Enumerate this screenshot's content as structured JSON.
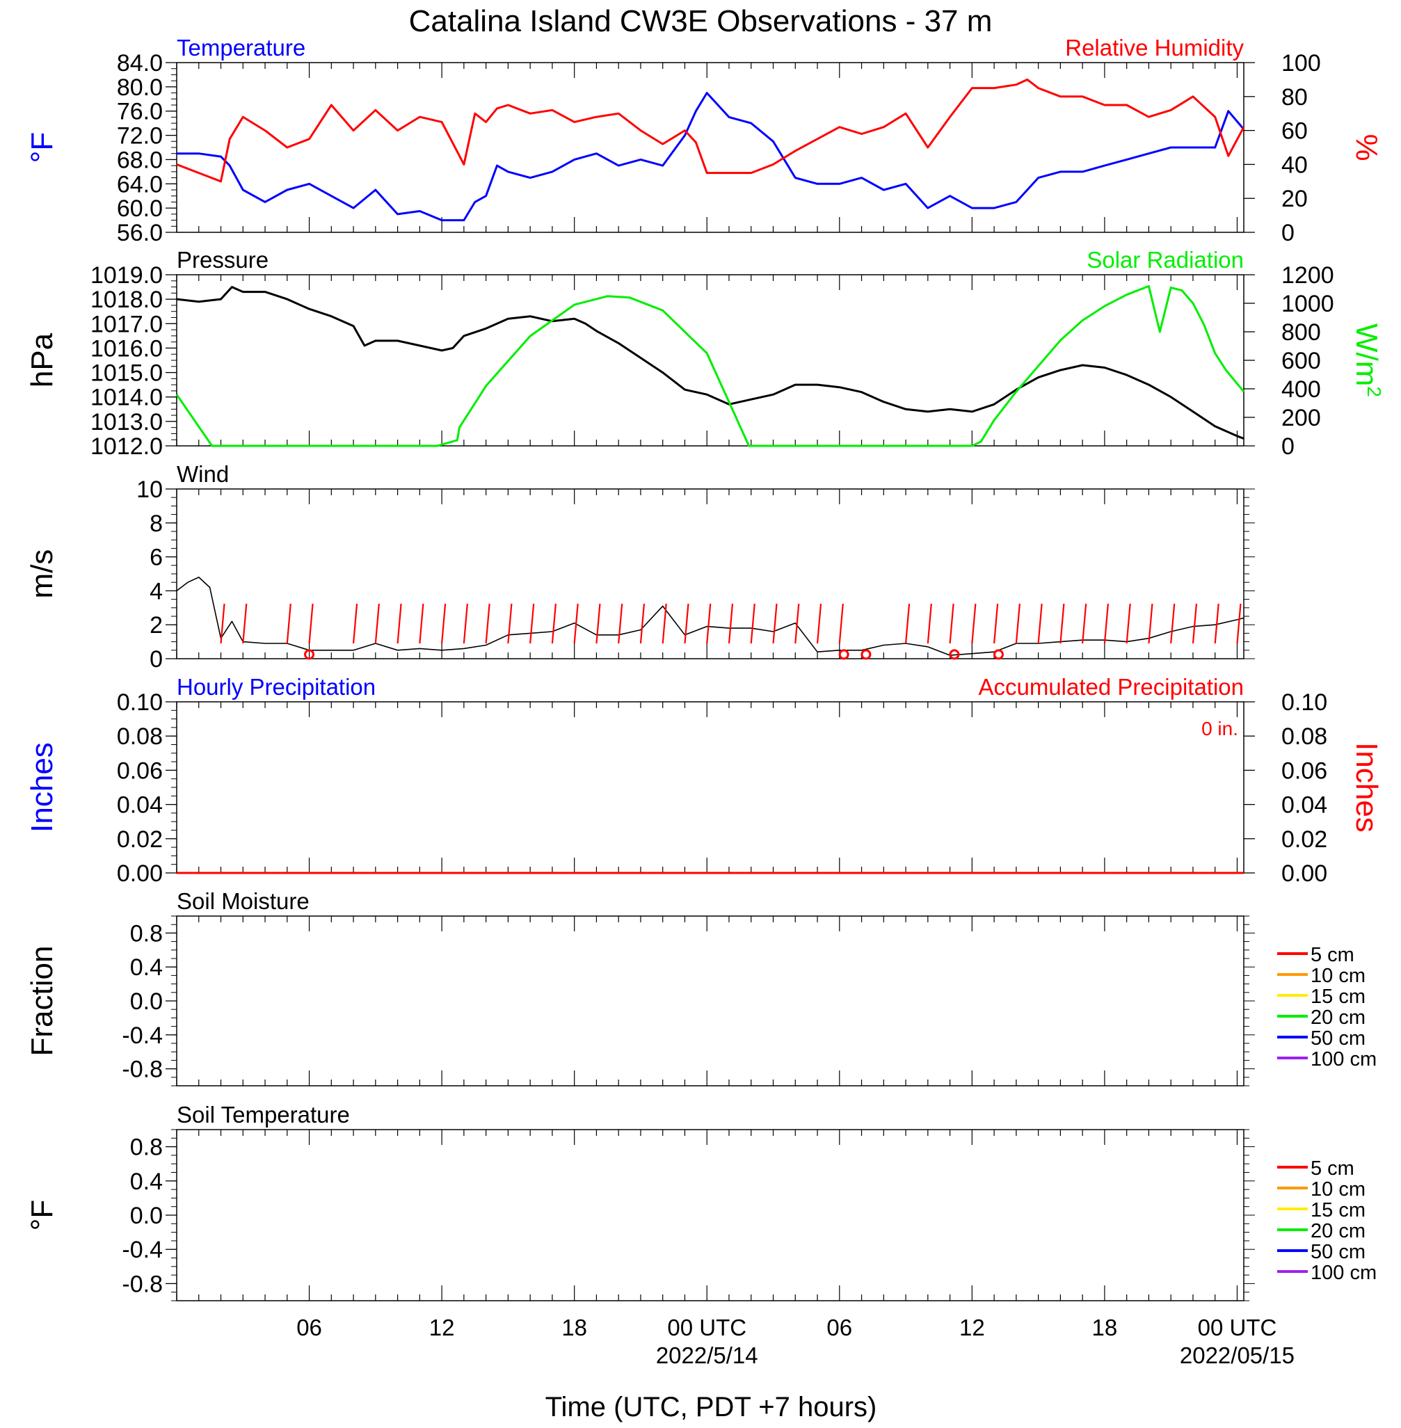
{
  "title": "Catalina Island CW3E Observations - 37 m",
  "xlabel": "Time (UTC, PDT +7 hours)",
  "x_ticks": [
    {
      "hour": 6,
      "label": "06",
      "date": ""
    },
    {
      "hour": 12,
      "label": "12",
      "date": ""
    },
    {
      "hour": 18,
      "label": "18",
      "date": ""
    },
    {
      "hour": 24,
      "label": "00 UTC",
      "date": "2022/5/14"
    },
    {
      "hour": 30,
      "label": "06",
      "date": ""
    },
    {
      "hour": 36,
      "label": "12",
      "date": ""
    },
    {
      "hour": 42,
      "label": "18",
      "date": ""
    },
    {
      "hour": 48,
      "label": "00 UTC",
      "date": "2022/05/15"
    }
  ],
  "colors": {
    "blue": "#0000ff",
    "red": "#ff0000",
    "green": "#00ee00",
    "black": "#000000",
    "orange": "#ff9900",
    "yellow": "#ffee00",
    "purple": "#a020f0"
  },
  "chart_data": [
    {
      "type": "line",
      "id": "temp",
      "left_title": "Temperature",
      "right_title": "Relative Humidity",
      "ylabel": "°F",
      "y2label": "%",
      "ylim": [
        56,
        84
      ],
      "yticks": [
        "56.0",
        "60.0",
        "64.0",
        "68.0",
        "72.0",
        "76.0",
        "80.0",
        "84.0"
      ],
      "y2lim": [
        0,
        100
      ],
      "y2ticks": [
        "0",
        "20",
        "40",
        "60",
        "80",
        "100"
      ],
      "xlim": [
        0,
        48.3
      ],
      "series": [
        {
          "name": "Temperature",
          "axis": "left",
          "color": "#0000ff",
          "x": [
            0,
            1,
            2,
            2.4,
            3,
            4,
            5,
            6,
            7,
            8,
            9,
            10,
            11,
            12,
            13,
            13.5,
            14,
            14.5,
            15,
            16,
            17,
            18,
            19,
            20,
            21,
            22,
            23,
            23.5,
            24,
            25,
            26,
            27,
            28,
            29,
            30,
            31,
            32,
            33,
            34,
            35,
            36,
            37,
            38,
            38.5,
            39,
            40,
            41,
            42,
            43,
            44,
            45,
            46,
            47,
            47.6,
            48.3
          ],
          "y": [
            69,
            69,
            68.5,
            67,
            63,
            61,
            63,
            64,
            62,
            60,
            63,
            59,
            59.5,
            58,
            58,
            61,
            62,
            67,
            66,
            65,
            66,
            68,
            69,
            67,
            68,
            67,
            72,
            76,
            79,
            75,
            74,
            71,
            65,
            64,
            64,
            65,
            63,
            64,
            60,
            62,
            60,
            60,
            61,
            63,
            65,
            66,
            66,
            67,
            68,
            69,
            70,
            70,
            70,
            76,
            73
          ]
        },
        {
          "name": "Relative Humidity",
          "axis": "right",
          "color": "#ff0000",
          "x": [
            0,
            1,
            2,
            2.4,
            3,
            4,
            5,
            6,
            7,
            8,
            9,
            10,
            11,
            12,
            13,
            13.5,
            14,
            14.5,
            15,
            16,
            17,
            18,
            19,
            20,
            21,
            22,
            23,
            23.5,
            24,
            25,
            26,
            27,
            28,
            29,
            30,
            31,
            32,
            33,
            34,
            35,
            36,
            37,
            38,
            38.5,
            39,
            40,
            41,
            42,
            43,
            44,
            45,
            46,
            47,
            47.6,
            48.3
          ],
          "y": [
            40,
            35,
            30,
            55,
            68,
            60,
            50,
            55,
            75,
            60,
            72,
            60,
            68,
            65,
            40,
            70,
            65,
            73,
            75,
            70,
            72,
            65,
            68,
            70,
            60,
            52,
            60,
            53,
            35,
            35,
            35,
            40,
            48,
            55,
            62,
            58,
            62,
            70,
            50,
            68,
            85,
            85,
            87,
            90,
            85,
            80,
            80,
            75,
            75,
            68,
            72,
            80,
            68,
            45,
            62
          ]
        }
      ]
    },
    {
      "type": "line",
      "id": "pressure",
      "left_title": "Pressure",
      "right_title": "Solar Radiation",
      "ylabel": "hPa",
      "y2label": "W/m",
      "ylim": [
        1012,
        1019
      ],
      "yticks": [
        "1012.0",
        "1013.0",
        "1014.0",
        "1015.0",
        "1016.0",
        "1017.0",
        "1018.0",
        "1019.0"
      ],
      "y2lim": [
        0,
        1200
      ],
      "y2ticks": [
        "0",
        "200",
        "400",
        "600",
        "800",
        "1000",
        "1200"
      ],
      "xlim": [
        0,
        48.3
      ],
      "series": [
        {
          "name": "Pressure",
          "axis": "left",
          "color": "#000000",
          "x": [
            0,
            1,
            2,
            2.5,
            3,
            4,
            5,
            6,
            7,
            8,
            8.5,
            9,
            10,
            11,
            12,
            12.5,
            13,
            14,
            15,
            16,
            17,
            18,
            18.5,
            19,
            20,
            21,
            22,
            23,
            24,
            25,
            26,
            27,
            28,
            29,
            30,
            31,
            32,
            33,
            34,
            35,
            36,
            37,
            38,
            39,
            40,
            41,
            42,
            43,
            44,
            45,
            46,
            47,
            48,
            48.3
          ],
          "y": [
            1018,
            1017.9,
            1018,
            1018.5,
            1018.3,
            1018.3,
            1018,
            1017.6,
            1017.3,
            1016.9,
            1016.1,
            1016.3,
            1016.3,
            1016.1,
            1015.9,
            1016,
            1016.5,
            1016.8,
            1017.2,
            1017.3,
            1017.1,
            1017.2,
            1017,
            1016.7,
            1016.2,
            1015.6,
            1015,
            1014.3,
            1014.1,
            1013.7,
            1013.9,
            1014.1,
            1014.5,
            1014.5,
            1014.4,
            1014.2,
            1013.8,
            1013.5,
            1013.4,
            1013.5,
            1013.4,
            1013.7,
            1014.3,
            1014.8,
            1015.1,
            1015.3,
            1015.2,
            1014.9,
            1014.5,
            1014,
            1013.4,
            1012.8,
            1012.4,
            1012.3
          ]
        },
        {
          "name": "Solar Radiation",
          "axis": "right",
          "color": "#00ee00",
          "x": [
            0,
            1.6,
            11.8,
            12.7,
            12.8,
            14,
            16,
            18,
            19.5,
            20.5,
            22,
            24,
            25.9,
            26.1,
            36,
            36.4,
            37,
            38,
            39,
            40,
            41,
            42,
            43,
            44,
            44.5,
            45,
            45.5,
            46,
            46.5,
            47,
            47.5,
            48.3
          ],
          "y": [
            360,
            0,
            0,
            40,
            130,
            420,
            770,
            990,
            1050,
            1040,
            950,
            650,
            0,
            0,
            0,
            30,
            180,
            380,
            560,
            740,
            880,
            980,
            1060,
            1120,
            800,
            1110,
            1090,
            1000,
            850,
            650,
            530,
            380
          ]
        }
      ]
    },
    {
      "type": "line",
      "id": "wind",
      "left_title": "Wind",
      "right_title": "",
      "ylabel": "m/s",
      "ylim": [
        0,
        10
      ],
      "yticks": [
        "0",
        "2",
        "4",
        "6",
        "8",
        "10"
      ],
      "xlim": [
        0,
        48.3
      ],
      "series": [
        {
          "name": "Wind",
          "axis": "left",
          "color": "#000000",
          "x": [
            0,
            0.5,
            1,
            1.5,
            2,
            2.5,
            3,
            4,
            5,
            6,
            7,
            8,
            9,
            10,
            11,
            12,
            13,
            14,
            15,
            16,
            17,
            18,
            19,
            20,
            21,
            22,
            23,
            24,
            25,
            26,
            27,
            28,
            29,
            30,
            31,
            32,
            33,
            34,
            35,
            36,
            37,
            38,
            39,
            40,
            41,
            42,
            43,
            44,
            45,
            46,
            47,
            48,
            48.3
          ],
          "y": [
            4,
            4.5,
            4.8,
            4.2,
            1.2,
            2.2,
            1,
            0.9,
            0.9,
            0.5,
            0.5,
            0.5,
            0.9,
            0.5,
            0.6,
            0.5,
            0.6,
            0.8,
            1.4,
            1.5,
            1.6,
            2.1,
            1.4,
            1.4,
            1.7,
            3.1,
            1.4,
            1.9,
            1.8,
            1.8,
            1.6,
            2.1,
            0.4,
            0.5,
            0.5,
            0.8,
            0.9,
            0.7,
            0.2,
            0.3,
            0.4,
            0.9,
            0.9,
            1,
            1.1,
            1.1,
            1,
            1.2,
            1.6,
            1.9,
            2,
            2.3,
            2.4
          ]
        }
      ],
      "vector_x": [
        2,
        3,
        5,
        6,
        8,
        9,
        10,
        11,
        12,
        13,
        14,
        15,
        16,
        17,
        18,
        19,
        20,
        21,
        22,
        23,
        24,
        25,
        26,
        27,
        28,
        29,
        30,
        33,
        34,
        35,
        36,
        37,
        38,
        39,
        40,
        41,
        42,
        43,
        44,
        45,
        46,
        47,
        48
      ],
      "calm_x": [
        6,
        30.2,
        31.2,
        35.2,
        37.2
      ]
    },
    {
      "type": "line",
      "id": "precip",
      "left_title": "Hourly Precipitation",
      "right_title": "Accumulated Precipitation",
      "annotation": "0 in.",
      "ylabel": "Inches",
      "y2label": "Inches",
      "ylim": [
        0,
        0.1
      ],
      "yticks": [
        "0.00",
        "0.02",
        "0.04",
        "0.06",
        "0.08",
        "0.10"
      ],
      "y2lim": [
        0,
        0.1
      ],
      "y2ticks": [
        "0.00",
        "0.02",
        "0.04",
        "0.06",
        "0.08",
        "0.10"
      ],
      "xlim": [
        0,
        48.3
      ],
      "series": [
        {
          "name": "Hourly Precipitation",
          "axis": "left",
          "color": "#0000ff",
          "x": [
            0,
            48.3
          ],
          "y": [
            0,
            0
          ]
        },
        {
          "name": "Accumulated Precipitation",
          "axis": "right",
          "color": "#ff0000",
          "x": [
            0,
            48.3
          ],
          "y": [
            0,
            0
          ]
        }
      ]
    },
    {
      "type": "line",
      "id": "soilm",
      "left_title": "Soil Moisture",
      "right_title": "",
      "ylabel": "Fraction",
      "ylim": [
        -1,
        1
      ],
      "yticks": [
        "-0.8",
        "-0.4",
        "0.0",
        "0.4",
        "0.8"
      ],
      "ytick_values": [
        -0.8,
        -0.4,
        0,
        0.4,
        0.8
      ],
      "xlim": [
        0,
        48.3
      ],
      "series": [],
      "legend": [
        {
          "label": "5 cm",
          "color": "#ff0000"
        },
        {
          "label": "10 cm",
          "color": "#ff9900"
        },
        {
          "label": "15 cm",
          "color": "#ffee00"
        },
        {
          "label": "20 cm",
          "color": "#00ee00"
        },
        {
          "label": "50 cm",
          "color": "#0000ff"
        },
        {
          "label": "100 cm",
          "color": "#a020f0"
        }
      ]
    },
    {
      "type": "line",
      "id": "soilt",
      "left_title": "Soil Temperature",
      "right_title": "",
      "ylabel": "°F",
      "ylim": [
        -1,
        1
      ],
      "yticks": [
        "-0.8",
        "-0.4",
        "0.0",
        "0.4",
        "0.8"
      ],
      "ytick_values": [
        -0.8,
        -0.4,
        0,
        0.4,
        0.8
      ],
      "xlim": [
        0,
        48.3
      ],
      "series": [],
      "legend": [
        {
          "label": "5 cm",
          "color": "#ff0000"
        },
        {
          "label": "10 cm",
          "color": "#ff9900"
        },
        {
          "label": "15 cm",
          "color": "#ffee00"
        },
        {
          "label": "20 cm",
          "color": "#00ee00"
        },
        {
          "label": "50 cm",
          "color": "#0000ff"
        },
        {
          "label": "100 cm",
          "color": "#a020f0"
        }
      ]
    }
  ]
}
